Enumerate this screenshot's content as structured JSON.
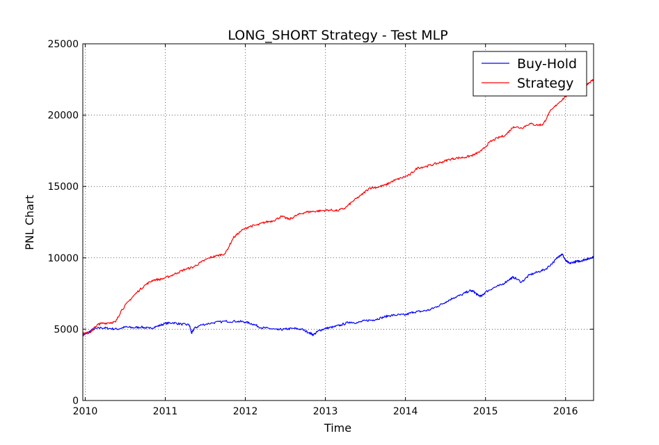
{
  "chart_data": {
    "type": "line",
    "title": "LONG_SHORT Strategy - Test MLP",
    "xlabel": "Time",
    "ylabel": "PNL Chart",
    "xlim": [
      2009.97,
      2016.35
    ],
    "ylim": [
      0,
      25000
    ],
    "x_ticks": [
      2010,
      2011,
      2012,
      2013,
      2014,
      2015,
      2016
    ],
    "x_tick_labels": [
      "2010",
      "2011",
      "2012",
      "2013",
      "2014",
      "2015",
      "2016"
    ],
    "y_ticks": [
      0,
      5000,
      10000,
      15000,
      20000,
      25000
    ],
    "y_tick_labels": [
      "0",
      "5000",
      "10000",
      "15000",
      "20000",
      "25000"
    ],
    "grid": true,
    "legend_position": "top-right",
    "series": [
      {
        "name": "Buy-Hold",
        "color": "#0000ff",
        "x": [
          2009.97,
          2010.05,
          2010.1,
          2010.2,
          2010.3,
          2010.4,
          2010.5,
          2010.6,
          2010.7,
          2010.8,
          2010.9,
          2011.0,
          2011.1,
          2011.2,
          2011.3,
          2011.33,
          2011.36,
          2011.45,
          2011.6,
          2011.75,
          2011.9,
          2012.0,
          2012.1,
          2012.2,
          2012.3,
          2012.4,
          2012.5,
          2012.6,
          2012.7,
          2012.8,
          2012.85,
          2012.92,
          2013.0,
          2013.1,
          2013.2,
          2013.3,
          2013.4,
          2013.5,
          2013.6,
          2013.7,
          2013.8,
          2013.9,
          2014.0,
          2014.1,
          2014.2,
          2014.3,
          2014.4,
          2014.5,
          2014.6,
          2014.7,
          2014.8,
          2014.85,
          2014.9,
          2014.95,
          2015.0,
          2015.1,
          2015.2,
          2015.3,
          2015.35,
          2015.45,
          2015.55,
          2015.65,
          2015.75,
          2015.85,
          2015.92,
          2015.96,
          2016.0,
          2016.05,
          2016.1,
          2016.15,
          2016.2,
          2016.25,
          2016.3,
          2016.35
        ],
        "values": [
          4600,
          4800,
          5000,
          5100,
          5050,
          5000,
          5150,
          5100,
          5150,
          5050,
          5200,
          5400,
          5450,
          5350,
          5300,
          4700,
          5050,
          5300,
          5450,
          5550,
          5550,
          5500,
          5350,
          5100,
          5050,
          4950,
          5000,
          5050,
          5000,
          4750,
          4600,
          4900,
          5050,
          5150,
          5300,
          5500,
          5450,
          5600,
          5650,
          5800,
          5950,
          6000,
          6000,
          6200,
          6250,
          6350,
          6600,
          6900,
          7200,
          7400,
          7700,
          7650,
          7400,
          7300,
          7600,
          7900,
          8100,
          8500,
          8650,
          8300,
          8800,
          9000,
          9200,
          9700,
          10150,
          10250,
          9800,
          9600,
          9700,
          9750,
          9800,
          9900,
          9950,
          10100
        ]
      },
      {
        "name": "Strategy",
        "color": "#ff0000",
        "x": [
          2009.97,
          2010.05,
          2010.1,
          2010.15,
          2010.2,
          2010.3,
          2010.38,
          2010.45,
          2010.55,
          2010.65,
          2010.75,
          2010.85,
          2010.95,
          2011.05,
          2011.15,
          2011.25,
          2011.35,
          2011.45,
          2011.55,
          2011.65,
          2011.75,
          2011.85,
          2011.95,
          2012.05,
          2012.15,
          2012.25,
          2012.35,
          2012.45,
          2012.55,
          2012.65,
          2012.75,
          2012.85,
          2012.95,
          2013.05,
          2013.15,
          2013.25,
          2013.35,
          2013.45,
          2013.55,
          2013.65,
          2013.75,
          2013.85,
          2013.95,
          2014.05,
          2014.15,
          2014.25,
          2014.35,
          2014.45,
          2014.55,
          2014.65,
          2014.75,
          2014.85,
          2014.95,
          2015.05,
          2015.15,
          2015.25,
          2015.35,
          2015.45,
          2015.55,
          2015.65,
          2015.72,
          2015.8,
          2015.9,
          2016.0,
          2016.05,
          2016.1,
          2016.15,
          2016.2,
          2016.25,
          2016.3,
          2016.35
        ],
        "values": [
          4700,
          4750,
          5000,
          5300,
          5400,
          5450,
          5500,
          6300,
          7000,
          7600,
          8100,
          8450,
          8500,
          8700,
          8950,
          9200,
          9350,
          9700,
          10000,
          10150,
          10300,
          11400,
          11900,
          12200,
          12300,
          12500,
          12600,
          12900,
          12700,
          13000,
          13200,
          13250,
          13300,
          13350,
          13300,
          13500,
          14000,
          14400,
          14900,
          14950,
          15100,
          15400,
          15600,
          15800,
          16300,
          16400,
          16550,
          16700,
          16900,
          17000,
          17050,
          17200,
          17500,
          18100,
          18400,
          18600,
          19200,
          19100,
          19400,
          19300,
          19350,
          20200,
          20800,
          21300,
          21500,
          21700,
          21900,
          22000,
          22100,
          22300,
          22500
        ]
      }
    ]
  }
}
